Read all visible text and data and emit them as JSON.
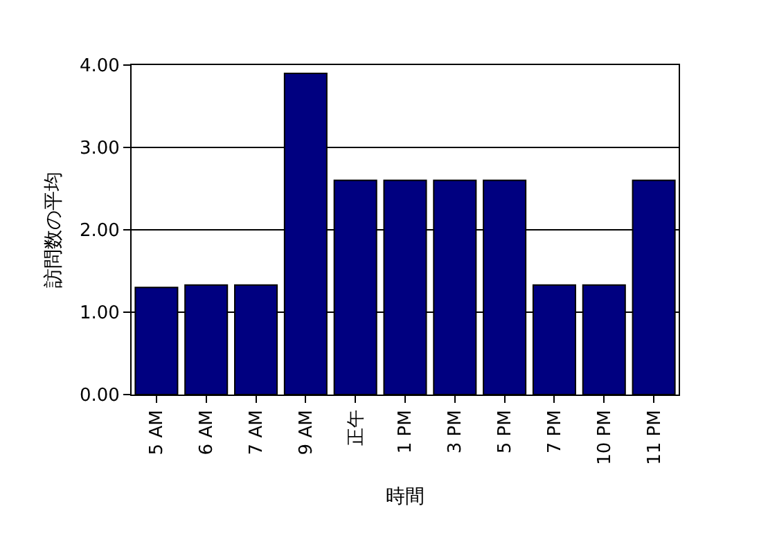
{
  "chart_data": {
    "type": "bar",
    "categories": [
      "5 AM",
      "6 AM",
      "7 AM",
      "9 AM",
      "正午",
      "1 PM",
      "3 PM",
      "5 PM",
      "7 PM",
      "10 PM",
      "11 PM"
    ],
    "values": [
      1.3,
      1.33,
      1.33,
      3.9,
      2.6,
      2.6,
      2.6,
      2.6,
      1.33,
      1.33,
      2.6
    ],
    "color": "#000080",
    "xlabel": "時間",
    "ylabel": "訪問数の平均",
    "ylim": [
      0,
      4
    ],
    "yticks": [
      {
        "value": 0,
        "label": "0.00"
      },
      {
        "value": 1,
        "label": "1.00"
      },
      {
        "value": 2,
        "label": "2.00"
      },
      {
        "value": 3,
        "label": "3.00"
      },
      {
        "value": 4,
        "label": "4.00"
      }
    ],
    "grid": "y"
  }
}
